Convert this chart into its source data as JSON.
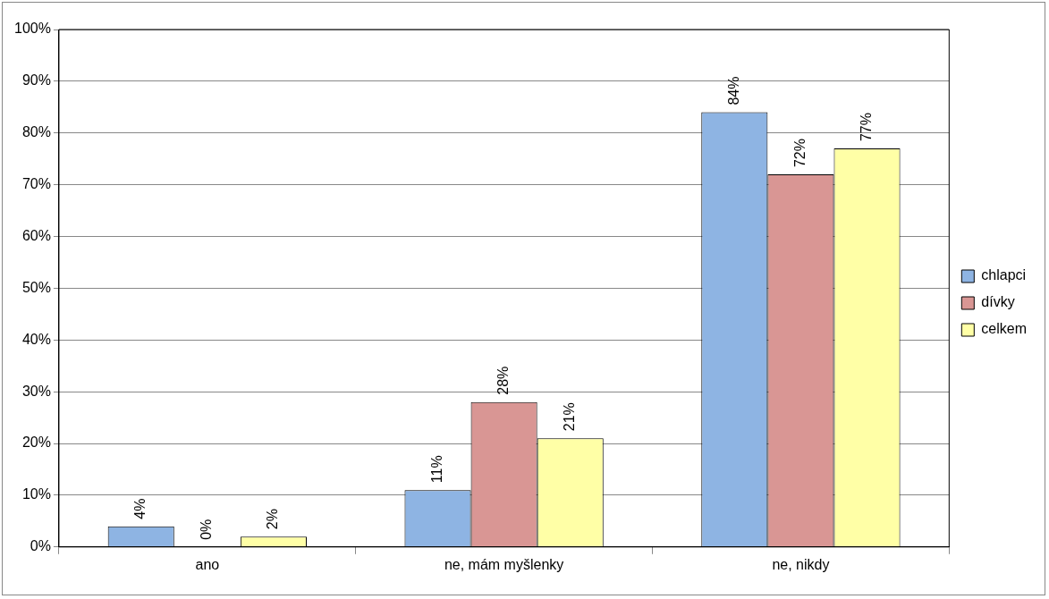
{
  "chart_data": {
    "type": "bar",
    "categories": [
      "ano",
      "ne, mám myšlenky",
      "ne, nikdy"
    ],
    "series": [
      {
        "name": "chlapci",
        "color": "#8eb4e3",
        "values": [
          4,
          11,
          84
        ],
        "value_labels": [
          "4%",
          "11%",
          "84%"
        ]
      },
      {
        "name": "dívky",
        "color": "#d99694",
        "values": [
          0,
          28,
          72
        ],
        "value_labels": [
          "0%",
          "28%",
          "72%"
        ]
      },
      {
        "name": "celkem",
        "color": "#ffffa6",
        "values": [
          2,
          21,
          77
        ],
        "value_labels": [
          "2%",
          "21%",
          "77%"
        ]
      }
    ],
    "ylim": [
      0,
      100
    ],
    "yticks": [
      {
        "value": 0,
        "label": "0%"
      },
      {
        "value": 10,
        "label": "10%"
      },
      {
        "value": 20,
        "label": "20%"
      },
      {
        "value": 30,
        "label": "30%"
      },
      {
        "value": 40,
        "label": "40%"
      },
      {
        "value": 50,
        "label": "50%"
      },
      {
        "value": 60,
        "label": "60%"
      },
      {
        "value": 70,
        "label": "70%"
      },
      {
        "value": 80,
        "label": "80%"
      },
      {
        "value": 90,
        "label": "90%"
      },
      {
        "value": 100,
        "label": "100%"
      }
    ],
    "grid": "y",
    "legend": "right"
  }
}
